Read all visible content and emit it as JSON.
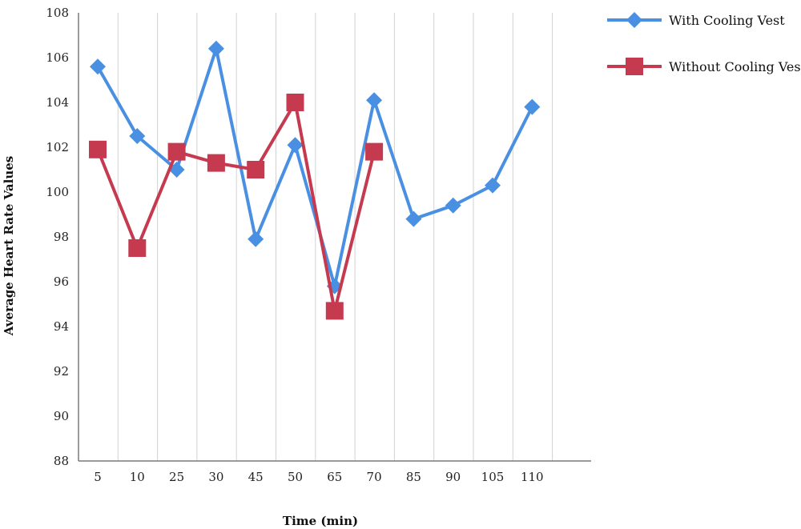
{
  "chart_data": {
    "type": "line",
    "title": "",
    "xlabel": "Time (min)",
    "ylabel": "Average Heart Rate Values",
    "categories": [
      "5",
      "10",
      "25",
      "30",
      "45",
      "50",
      "65",
      "70",
      "85",
      "90",
      "105",
      "110"
    ],
    "ylim": [
      88,
      108
    ],
    "yticks": [
      88,
      90,
      92,
      94,
      96,
      98,
      100,
      102,
      104,
      106,
      108
    ],
    "grid": "vertical",
    "legend": "right",
    "series": [
      {
        "name": "With Cooling Vest",
        "color": "#4a90e2",
        "marker": "diamond",
        "values": [
          105.6,
          102.5,
          101.0,
          106.4,
          97.9,
          102.1,
          95.8,
          104.1,
          98.8,
          99.4,
          100.3,
          103.8
        ]
      },
      {
        "name": "Without Cooling Vest",
        "color": "#c53a4f",
        "marker": "square",
        "values": [
          101.9,
          97.5,
          101.8,
          101.3,
          101.0,
          104.0,
          94.7,
          101.8,
          null,
          null,
          null,
          null
        ]
      }
    ]
  }
}
